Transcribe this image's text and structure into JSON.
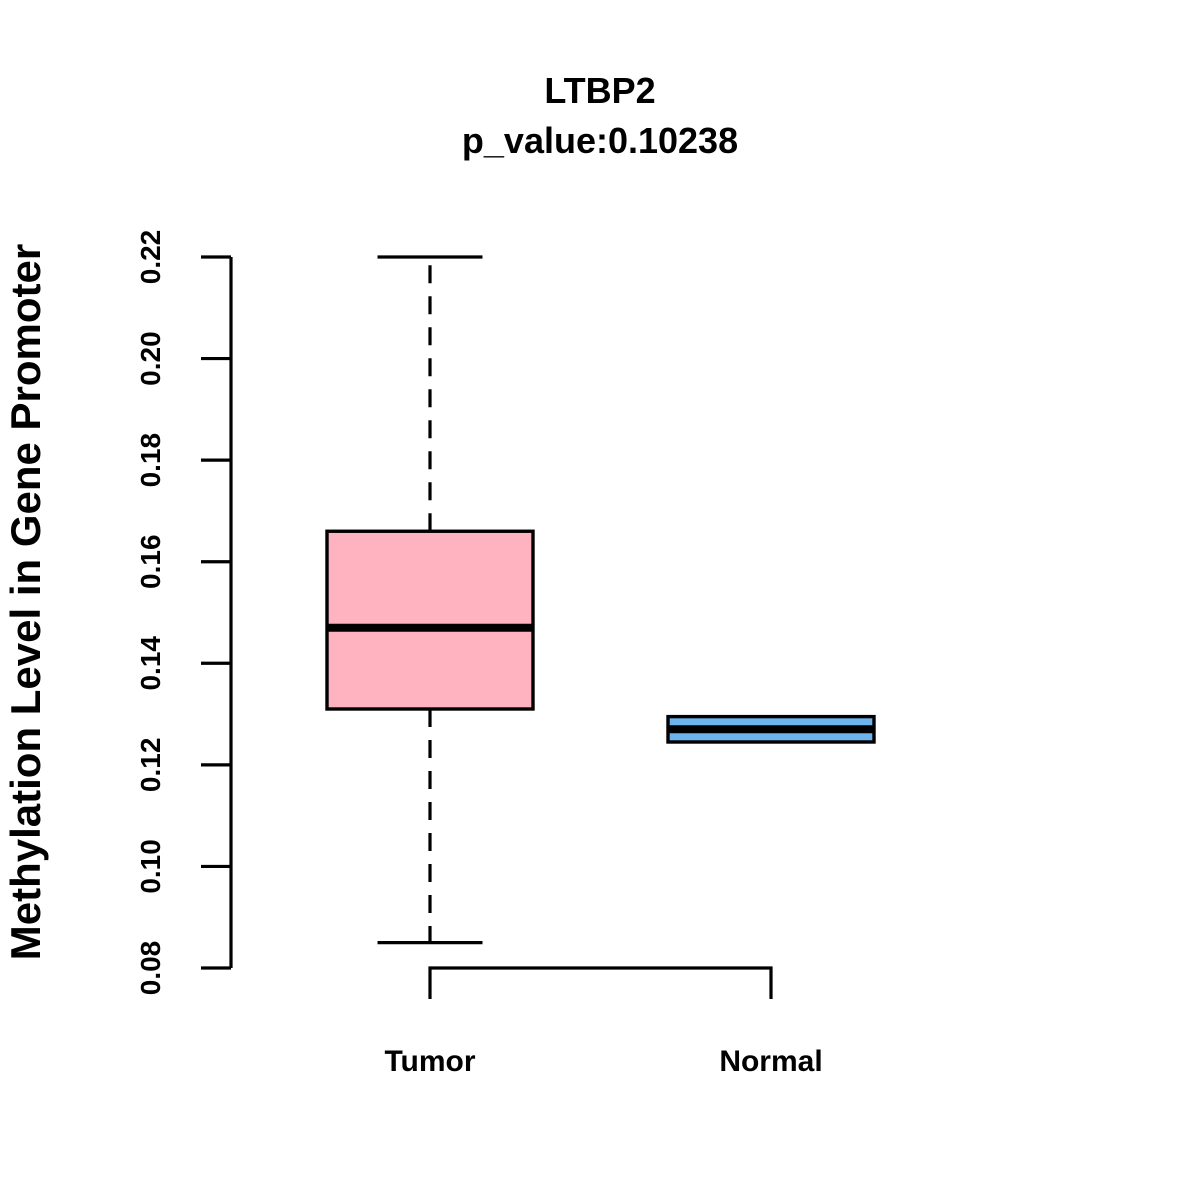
{
  "chart_data": {
    "type": "boxplot",
    "title": "LTBP2",
    "subtitle": "p_value:0.10238",
    "ylabel": "Methylation Level in Gene Promoter",
    "xlabel": "",
    "ylim": [
      0.08,
      0.22
    ],
    "ytick_labels": [
      "0.08",
      "0.10",
      "0.12",
      "0.14",
      "0.16",
      "0.18",
      "0.20",
      "0.22"
    ],
    "grid": false,
    "legend": "none",
    "categories": [
      "Tumor",
      "Normal"
    ],
    "series": [
      {
        "name": "Tumor",
        "lower_whisker": 0.085,
        "q1": 0.131,
        "median": 0.147,
        "q3": 0.166,
        "upper_whisker": 0.22,
        "fill": "#FFB3C1",
        "whisker_style": "dashed"
      },
      {
        "name": "Normal",
        "lower_whisker": 0.1245,
        "q1": 0.1245,
        "median": 0.127,
        "q3": 0.1295,
        "upper_whisker": 0.1295,
        "fill": "#6CB4EE",
        "whisker_style": "none"
      }
    ],
    "colors": {
      "axis": "#000000",
      "box_border": "#000000",
      "median_line": "#000000",
      "text": "#000000",
      "background": "#FFFFFF"
    }
  }
}
